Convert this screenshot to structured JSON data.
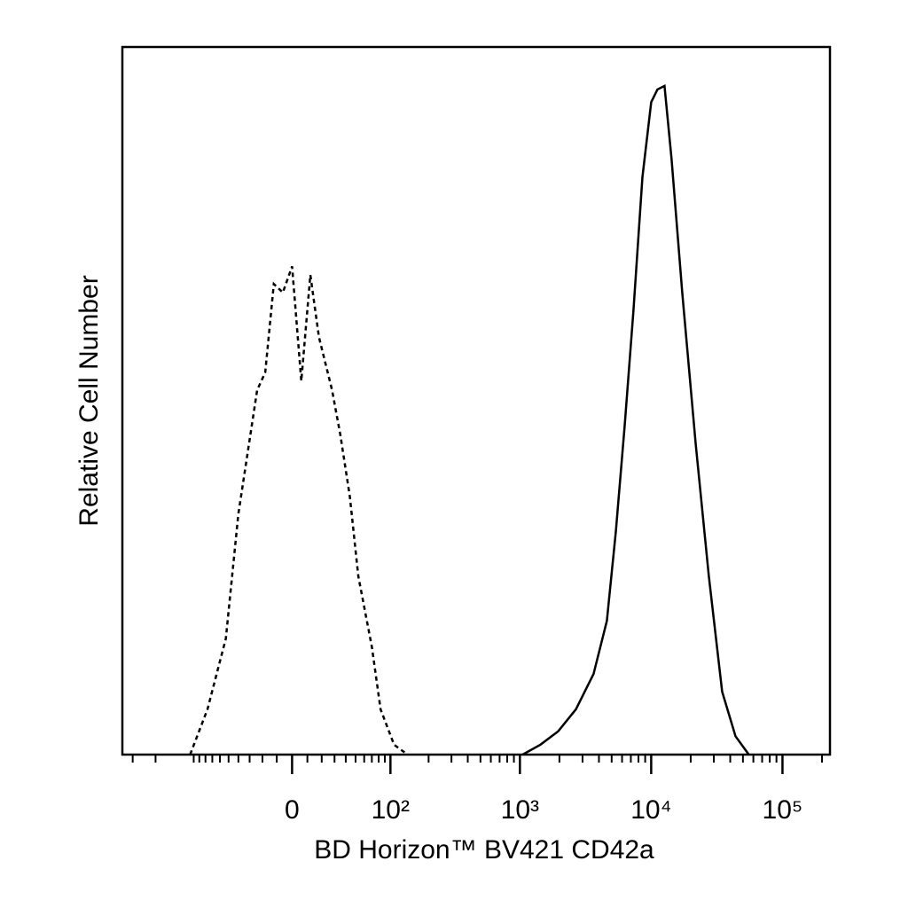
{
  "chart_data": {
    "type": "line",
    "xlabel": "BD Horizon™ BV421 CD42a",
    "ylabel": "Relative Cell Number",
    "xscale": "biexponential",
    "xlim": [
      -360,
      230000
    ],
    "ylim": [
      0,
      100
    ],
    "xticks": [
      0,
      {
        "value": 100,
        "label": "10²"
      },
      {
        "value": 1000,
        "label": "10³"
      },
      {
        "value": 10000,
        "label": "10⁴"
      },
      {
        "value": 100000,
        "label": "10⁵"
      }
    ],
    "xminor_ticks": [
      -300,
      -200,
      -100,
      -90,
      -80,
      -70,
      -60,
      -50,
      -40,
      -30,
      -20,
      -10,
      10,
      20,
      30,
      40,
      50,
      60,
      70,
      80,
      90,
      200,
      300,
      400,
      500,
      600,
      700,
      800,
      900,
      2000,
      3000,
      4000,
      5000,
      6000,
      7000,
      8000,
      9000,
      20000,
      30000,
      40000,
      50000,
      60000,
      70000,
      80000,
      90000,
      200000
    ],
    "series": [
      {
        "color": "#000000",
        "dash": true,
        "x": [
          -107,
          -77,
          -53,
          -40,
          -24,
          -18,
          -12,
          -6,
          0,
          6,
          12,
          18,
          28,
          35,
          44,
          53,
          70,
          83,
          107,
          137
        ],
        "values": [
          0,
          6.4,
          16.4,
          34,
          51.5,
          54,
          66.5,
          65.3,
          69,
          52.8,
          67.8,
          59,
          51.5,
          45.2,
          36.5,
          25.2,
          15.2,
          6.4,
          1.4,
          0
        ]
      },
      {
        "color": "#000000",
        "dash": false,
        "x": [
          1049,
          1433,
          1956,
          2670,
          3643,
          4600,
          5380,
          6280,
          7330,
          8570,
          10000,
          11150,
          12640,
          14300,
          17250,
          21800,
          27500,
          34700,
          43900,
          55400
        ],
        "values": [
          0,
          1.4,
          3.3,
          6.4,
          11.4,
          18.9,
          31.5,
          46.5,
          62.8,
          81.6,
          92.2,
          94.0,
          94.5,
          84.1,
          65.3,
          44,
          25.2,
          8.9,
          2.6,
          0
        ]
      }
    ]
  }
}
